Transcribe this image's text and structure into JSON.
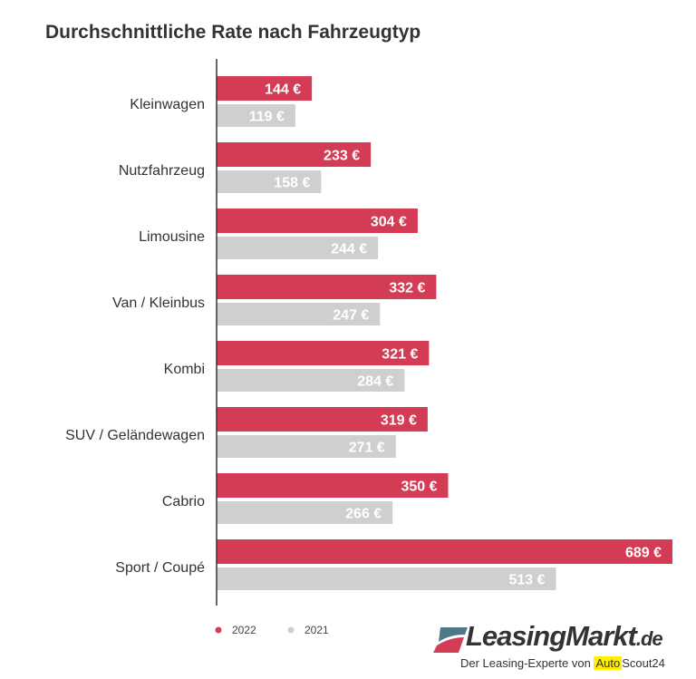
{
  "chart_data": {
    "type": "bar",
    "orientation": "horizontal",
    "title": "Durchschnittliche Rate nach Fahrzeugtyp",
    "categories": [
      "Kleinwagen",
      "Nutzfahrzeug",
      "Limousine",
      "Van / Kleinbus",
      "Kombi",
      "SUV / Geländewagen",
      "Cabrio",
      "Sport / Coupé"
    ],
    "series": [
      {
        "name": "2022",
        "color": "#d43b55",
        "values": [
          144,
          233,
          304,
          332,
          321,
          319,
          350,
          689
        ],
        "labels": [
          "144 €",
          "233 €",
          "304 €",
          "332 €",
          "321 €",
          "319 €",
          "350 €",
          "689 €"
        ]
      },
      {
        "name": "2021",
        "color": "#cfcfcf",
        "values": [
          119,
          158,
          244,
          247,
          284,
          271,
          266,
          513
        ],
        "labels": [
          "119 €",
          "158 €",
          "244 €",
          "247 €",
          "284 €",
          "271 €",
          "266 €",
          "513 €"
        ]
      }
    ],
    "xlim": [
      0,
      689
    ],
    "grid": false,
    "legend": "bottom-left"
  },
  "logo": {
    "name": "LeasingMarkt",
    "tld": ".de",
    "tagline": "Der Leasing-Experte von",
    "partner_a": "Auto",
    "partner_b": "Scout24"
  }
}
